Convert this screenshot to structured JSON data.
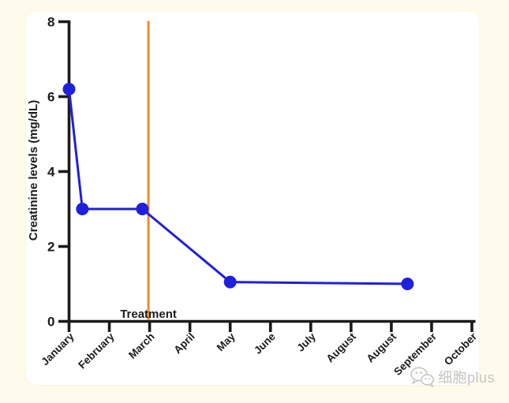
{
  "page": {
    "background_color": "#FFFBEC",
    "card_color": "#FFFFFF"
  },
  "chart_data": {
    "type": "line",
    "title": "",
    "xlabel": "",
    "ylabel": "Creatinine levels (mg/dL)",
    "axis_color": "#1A1A1A",
    "grid": false,
    "legend": "none",
    "ylim": [
      0,
      8
    ],
    "yticks": [
      0,
      2,
      4,
      6,
      8
    ],
    "categories": [
      "January",
      "February",
      "March",
      "April",
      "May",
      "June",
      "July",
      "August",
      "August",
      "September",
      "October"
    ],
    "series": [
      {
        "name": "Creatinine levels",
        "color": "#1F1FDD",
        "marker": "circle",
        "x_month_positions": [
          0,
          0.33,
          1.82,
          4.0,
          8.4
        ],
        "values": [
          6.2,
          3.0,
          3.0,
          1.05,
          1.0
        ]
      }
    ],
    "annotations": [
      {
        "type": "vline",
        "label": "Treatment",
        "x_month_position": 1.97,
        "color": "#EE8C28"
      }
    ]
  },
  "watermark": {
    "icon": "wechat-icon",
    "text": "细胞plus",
    "color": "#C6C5C0"
  }
}
